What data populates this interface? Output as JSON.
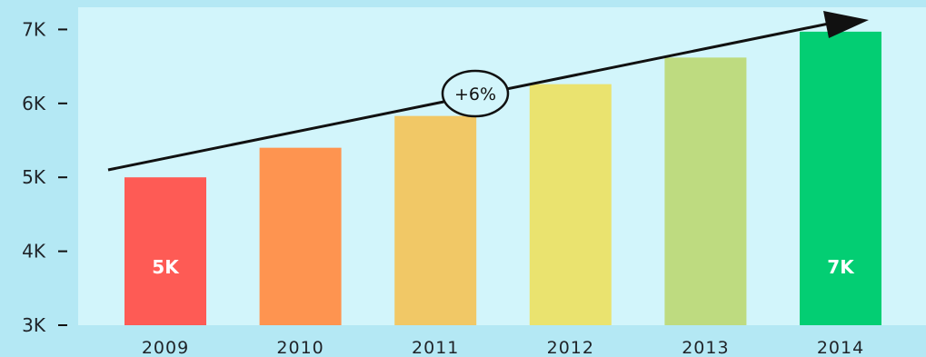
{
  "chart_data": {
    "type": "bar",
    "categories": [
      "2009",
      "2010",
      "2011",
      "2012",
      "2013",
      "2014"
    ],
    "values": [
      5000,
      5400,
      5830,
      6260,
      6620,
      6970
    ],
    "data_labels": [
      "5K",
      "",
      "",
      "",
      "",
      "7K"
    ],
    "ylim": [
      3000,
      7300
    ],
    "yticks": [
      {
        "value": 3000,
        "label": "3K"
      },
      {
        "value": 4000,
        "label": "4K"
      },
      {
        "value": 5000,
        "label": "5K"
      },
      {
        "value": 6000,
        "label": "6K"
      },
      {
        "value": 7000,
        "label": "7K"
      }
    ],
    "bar_colors": [
      "#fe5b55",
      "#fe9450",
      "#f1c866",
      "#eae36f",
      "#bedb80",
      "#03ce73"
    ],
    "annotation": {
      "text": "+6%"
    },
    "grid": false,
    "colors": {
      "page_background": "#b4e8f4",
      "plot_background": "#d2f5fb",
      "axis": "#111111"
    }
  }
}
